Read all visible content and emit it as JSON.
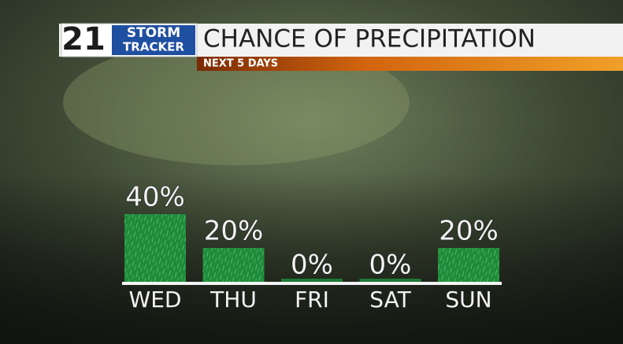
{
  "chart_data": {
    "type": "bar",
    "logo": {
      "number": "21",
      "line1": "STORM",
      "line2": "TRACKER"
    },
    "title": "CHANCE OF PRECIPITATION",
    "subtitle": "NEXT 5 DAYS",
    "categories": [
      "WED",
      "THU",
      "FRI",
      "SAT",
      "SUN"
    ],
    "values": [
      40,
      20,
      0,
      0,
      20
    ],
    "value_labels": [
      "40%",
      "20%",
      "0%",
      "0%",
      "20%"
    ],
    "color": "#1f8c3c"
  }
}
